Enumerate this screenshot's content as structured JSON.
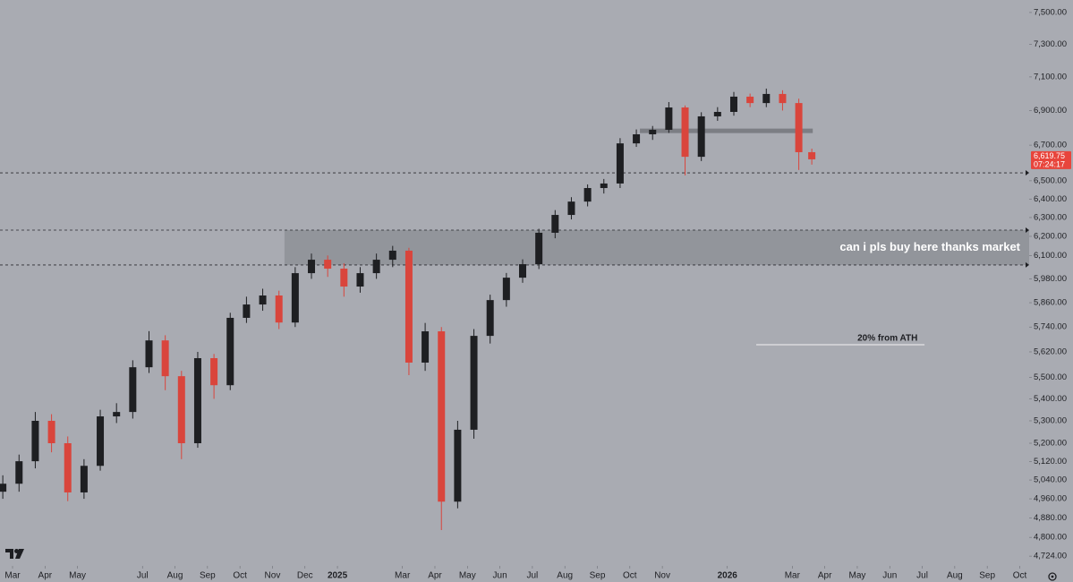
{
  "chart_data": {
    "type": "candlestick",
    "log_scale": true,
    "up_color": "#1e1f22",
    "down_color": "#d9453c",
    "x": [
      -0.3,
      0.2,
      0.7,
      1.2,
      1.7,
      2.2,
      2.7,
      3.2,
      3.7,
      4.2,
      4.7,
      5.2,
      5.7,
      6.2,
      6.7,
      7.2,
      7.7,
      8.2,
      8.7,
      9.2,
      9.7,
      10.2,
      10.7,
      11.2,
      11.7,
      12.2,
      12.7,
      13.2,
      13.7,
      14.2,
      14.7,
      15.2,
      15.7,
      16.2,
      16.7,
      17.2,
      17.7,
      18.2,
      18.7,
      19.2,
      19.7,
      20.2,
      20.7,
      21.2,
      21.7,
      22.2,
      22.7,
      23.2,
      23.7,
      24.2,
      24.6
    ],
    "open": [
      4990,
      5024,
      5121,
      5300,
      5200,
      4987,
      5101,
      5320,
      5340,
      5547,
      5675,
      5505,
      5200,
      5590,
      5463,
      5785,
      5851,
      5896,
      5762,
      6009,
      6078,
      6032,
      5941,
      6009,
      6078,
      6125,
      5569,
      5719,
      4948,
      5260,
      5697,
      5873,
      5986,
      6055,
      6219,
      6314,
      6386,
      6460,
      6485,
      6710,
      6762,
      6788,
      6918,
      6634,
      6866,
      6892,
      6982,
      6944,
      6998,
      6944,
      6660
    ],
    "high": [
      5060,
      5150,
      5340,
      5330,
      5230,
      5130,
      5350,
      5380,
      5580,
      5720,
      5700,
      5530,
      5620,
      5610,
      5810,
      5890,
      5930,
      5920,
      6040,
      6110,
      6100,
      6060,
      6040,
      6110,
      6150,
      6140,
      5760,
      5740,
      5300,
      5730,
      5900,
      6010,
      6080,
      6240,
      6340,
      6410,
      6480,
      6510,
      6740,
      6790,
      6810,
      6950,
      6930,
      6890,
      6920,
      7010,
      7000,
      7030,
      7020,
      6970,
      6680
    ],
    "low": [
      4960,
      4990,
      5090,
      5160,
      4950,
      4960,
      5080,
      5290,
      5310,
      5520,
      5440,
      5130,
      5180,
      5400,
      5440,
      5760,
      5820,
      5730,
      5740,
      5980,
      5990,
      5890,
      5910,
      5980,
      6040,
      5510,
      5530,
      4830,
      4920,
      5220,
      5660,
      5840,
      5960,
      6030,
      6190,
      6290,
      6360,
      6430,
      6460,
      6690,
      6730,
      6770,
      6530,
      6610,
      6840,
      6870,
      6920,
      6920,
      6900,
      6560,
      6590
    ],
    "close": [
      5024,
      5121,
      5300,
      5200,
      4987,
      5101,
      5320,
      5340,
      5547,
      5675,
      5505,
      5200,
      5590,
      5463,
      5785,
      5851,
      5896,
      5762,
      6009,
      6078,
      6032,
      5941,
      6009,
      6078,
      6125,
      5569,
      5719,
      4948,
      5260,
      5697,
      5873,
      5986,
      6055,
      6219,
      6314,
      6386,
      6460,
      6485,
      6710,
      6762,
      6788,
      6918,
      6634,
      6866,
      6892,
      6982,
      6944,
      6998,
      6944,
      6660,
      6619.75
    ],
    "xlim": [
      -0.386,
      31.29
    ],
    "ylim": [
      4685,
      7580
    ],
    "xticks": [
      {
        "value": 0,
        "label": "Mar"
      },
      {
        "value": 1,
        "label": "Apr"
      },
      {
        "value": 2,
        "label": "May"
      },
      {
        "value": 4,
        "label": "Jul"
      },
      {
        "value": 5,
        "label": "Aug"
      },
      {
        "value": 6,
        "label": "Sep"
      },
      {
        "value": 7,
        "label": "Oct"
      },
      {
        "value": 8,
        "label": "Nov"
      },
      {
        "value": 9,
        "label": "Dec"
      },
      {
        "value": 10,
        "label": "2025"
      },
      {
        "value": 12,
        "label": "Mar"
      },
      {
        "value": 13,
        "label": "Apr"
      },
      {
        "value": 14,
        "label": "May"
      },
      {
        "value": 15,
        "label": "Jun"
      },
      {
        "value": 16,
        "label": "Jul"
      },
      {
        "value": 17,
        "label": "Aug"
      },
      {
        "value": 18,
        "label": "Sep"
      },
      {
        "value": 19,
        "label": "Oct"
      },
      {
        "value": 20,
        "label": "Nov"
      },
      {
        "value": 22,
        "label": "2026"
      },
      {
        "value": 24,
        "label": "Mar"
      },
      {
        "value": 25,
        "label": "Apr"
      },
      {
        "value": 26,
        "label": "May"
      },
      {
        "value": 27,
        "label": "Jun"
      },
      {
        "value": 28,
        "label": "Jul"
      },
      {
        "value": 29,
        "label": "Aug"
      },
      {
        "value": 30,
        "label": "Sep"
      },
      {
        "value": 31,
        "label": "Oct"
      }
    ],
    "yticks": [
      {
        "value": 4724,
        "label": "4,724.00"
      },
      {
        "value": 4800,
        "label": "4,800.00"
      },
      {
        "value": 4880,
        "label": "4,880.00"
      },
      {
        "value": 4960,
        "label": "4,960.00"
      },
      {
        "value": 5040,
        "label": "5,040.00"
      },
      {
        "value": 5120,
        "label": "5,120.00"
      },
      {
        "value": 5200,
        "label": "5,200.00"
      },
      {
        "value": 5300,
        "label": "5,300.00"
      },
      {
        "value": 5400,
        "label": "5,400.00"
      },
      {
        "value": 5500,
        "label": "5,500.00"
      },
      {
        "value": 5620,
        "label": "5,620.00"
      },
      {
        "value": 5740,
        "label": "5,740.00"
      },
      {
        "value": 5860,
        "label": "5,860.00"
      },
      {
        "value": 5980,
        "label": "5,980.00"
      },
      {
        "value": 6100,
        "label": "6,100.00"
      },
      {
        "value": 6200,
        "label": "6,200.00"
      },
      {
        "value": 6300,
        "label": "6,300.00"
      },
      {
        "value": 6400,
        "label": "6,400.00"
      },
      {
        "value": 6500,
        "label": "6,500.00"
      },
      {
        "value": 6700,
        "label": "6,700.00"
      },
      {
        "value": 6900,
        "label": "6,900.00"
      },
      {
        "value": 7100,
        "label": "7,100.00"
      },
      {
        "value": 7300,
        "label": "7,300.00"
      },
      {
        "value": 7500,
        "label": "7,500.00"
      }
    ],
    "levels": [
      6544,
      6233,
      6051
    ],
    "zone": {
      "text": "can i pls buy here thanks market",
      "x_start": 8.37,
      "top": 6233,
      "bottom": 6051
    },
    "resistance": {
      "x_start": 19.31,
      "x_end": 24.63,
      "value": 6782
    },
    "ath_line": {
      "text": "20% from ATH",
      "x_start": 22.89,
      "x_end": 28.07,
      "value": 5654
    },
    "last_price": {
      "value": 6619.75,
      "label": "6,619.75",
      "countdown": "07:24:17"
    }
  }
}
